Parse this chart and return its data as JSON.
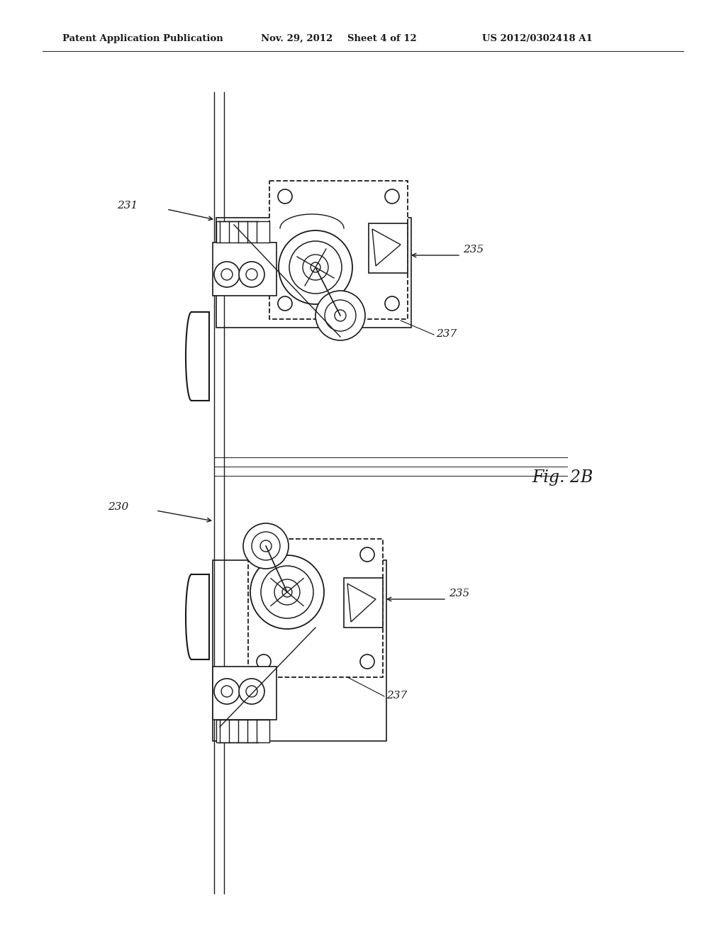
{
  "bg_color": "#ffffff",
  "header_text": "Patent Application Publication",
  "header_date": "Nov. 29, 2012",
  "header_sheet": "Sheet 4 of 12",
  "header_patent": "US 2012/0302418 A1",
  "fig_label": "Fig. 2B",
  "label_231": "231",
  "label_230": "230",
  "label_235a": "235",
  "label_237a": "237",
  "label_235b": "235",
  "label_237b": "237",
  "lc": "#1a1a1a",
  "gray": "#888888"
}
